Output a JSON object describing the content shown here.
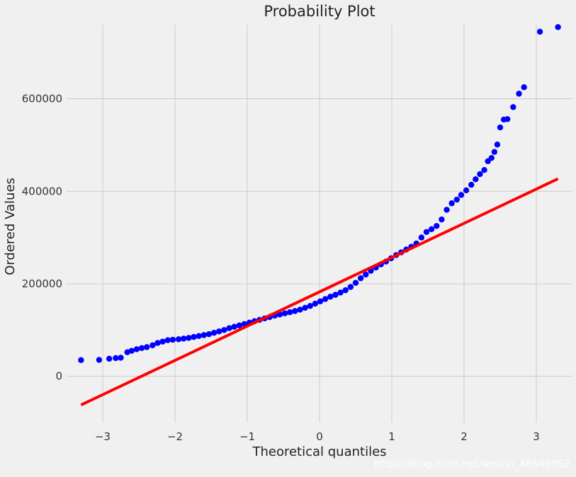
{
  "chart_data": {
    "type": "scatter",
    "title": "Probability Plot",
    "xlabel": "Theoretical quantiles",
    "ylabel": "Ordered Values",
    "xlim": [
      -3.5,
      3.5
    ],
    "ylim": [
      -100000,
      760000
    ],
    "x_ticks": [
      -3,
      -2,
      -1,
      0,
      1,
      2,
      3
    ],
    "x_tick_labels": [
      "−3",
      "−2",
      "−1",
      "0",
      "1",
      "2",
      "3"
    ],
    "y_ticks": [
      0,
      200000,
      400000,
      600000
    ],
    "y_tick_labels": [
      "0",
      "200000",
      "400000",
      "600000"
    ],
    "grid": true,
    "series": [
      {
        "kind": "points",
        "color": "#0000ff",
        "points": [
          [
            -3.3,
            34900
          ],
          [
            -3.05,
            35300
          ],
          [
            -2.91,
            37900
          ],
          [
            -2.82,
            39300
          ],
          [
            -2.75,
            40000
          ],
          [
            -2.66,
            52000
          ],
          [
            -2.6,
            55000
          ],
          [
            -2.53,
            58500
          ],
          [
            -2.46,
            61000
          ],
          [
            -2.39,
            63000
          ],
          [
            -2.31,
            67000
          ],
          [
            -2.24,
            72000
          ],
          [
            -2.17,
            75000
          ],
          [
            -2.1,
            78000
          ],
          [
            -2.03,
            79000
          ],
          [
            -1.95,
            80000
          ],
          [
            -1.88,
            81500
          ],
          [
            -1.81,
            83000
          ],
          [
            -1.74,
            85000
          ],
          [
            -1.67,
            87000
          ],
          [
            -1.6,
            89000
          ],
          [
            -1.53,
            91000
          ],
          [
            -1.46,
            94000
          ],
          [
            -1.39,
            97000
          ],
          [
            -1.32,
            100000
          ],
          [
            -1.25,
            104000
          ],
          [
            -1.18,
            107000
          ],
          [
            -1.11,
            110000
          ],
          [
            -1.04,
            113000
          ],
          [
            -0.97,
            116000
          ],
          [
            -0.9,
            119000
          ],
          [
            -0.83,
            122000
          ],
          [
            -0.76,
            125000
          ],
          [
            -0.69,
            128000
          ],
          [
            -0.62,
            131000
          ],
          [
            -0.55,
            133500
          ],
          [
            -0.48,
            136000
          ],
          [
            -0.41,
            138500
          ],
          [
            -0.34,
            141000
          ],
          [
            -0.27,
            144000
          ],
          [
            -0.2,
            148000
          ],
          [
            -0.13,
            152000
          ],
          [
            -0.06,
            157000
          ],
          [
            0.01,
            162000
          ],
          [
            0.08,
            167000
          ],
          [
            0.15,
            172000
          ],
          [
            0.22,
            176000
          ],
          [
            0.29,
            181000
          ],
          [
            0.36,
            186000
          ],
          [
            0.43,
            193000
          ],
          [
            0.5,
            202000
          ],
          [
            0.57,
            212000
          ],
          [
            0.64,
            220000
          ],
          [
            0.71,
            228000
          ],
          [
            0.78,
            235000
          ],
          [
            0.85,
            242000
          ],
          [
            0.92,
            248000
          ],
          [
            0.99,
            255000
          ],
          [
            1.06,
            262000
          ],
          [
            1.13,
            268000
          ],
          [
            1.2,
            274000
          ],
          [
            1.27,
            280000
          ],
          [
            1.34,
            287000
          ],
          [
            1.41,
            300000
          ],
          [
            1.48,
            312000
          ],
          [
            1.55,
            318000
          ],
          [
            1.62,
            325000
          ],
          [
            1.69,
            339000
          ],
          [
            1.76,
            360000
          ],
          [
            1.83,
            374000
          ],
          [
            1.9,
            382000
          ],
          [
            1.96,
            392000
          ],
          [
            2.03,
            402000
          ],
          [
            2.1,
            414000
          ],
          [
            2.16,
            426000
          ],
          [
            2.22,
            437000
          ],
          [
            2.28,
            446000
          ],
          [
            2.33,
            465000
          ],
          [
            2.38,
            472000
          ],
          [
            2.42,
            485000
          ],
          [
            2.46,
            501000
          ],
          [
            2.5,
            538000
          ],
          [
            2.55,
            555000
          ],
          [
            2.6,
            556000
          ],
          [
            2.68,
            582000
          ],
          [
            2.76,
            611000
          ],
          [
            2.83,
            625000
          ],
          [
            3.05,
            745000
          ],
          [
            3.3,
            755000
          ]
        ]
      },
      {
        "kind": "fit-line",
        "color": "#ff0000",
        "x": [
          -3.3,
          3.3
        ],
        "y": [
          -62000,
          427000
        ]
      }
    ]
  },
  "watermark": "https://blog.csdn.net/weixin_46649052"
}
